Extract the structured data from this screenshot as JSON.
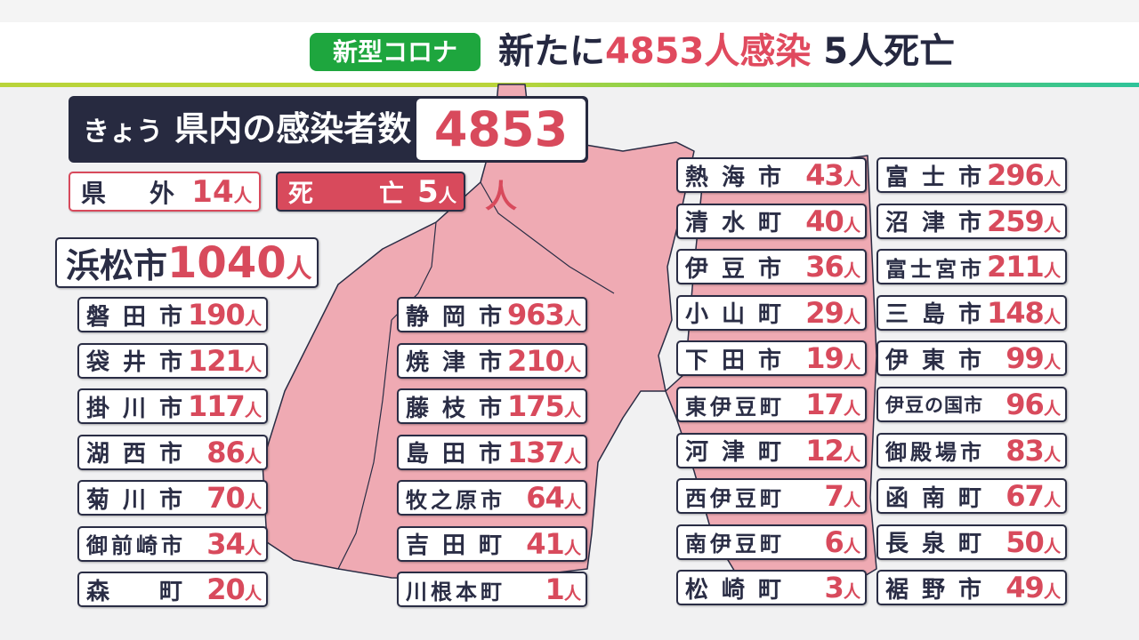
{
  "header": {
    "badge": "新型コロナ",
    "headline_prefix": "新たに",
    "headline_cases": "4853人感染",
    "headline_deaths": "5人死亡"
  },
  "colors": {
    "badge": "#1ea63e",
    "accent_red": "#d84a5c",
    "navy": "#272a40",
    "map_fill": "#efaab3"
  },
  "summary": {
    "label_prefix": "きょう",
    "label": "県内の感染者数",
    "total": "4853",
    "unit": "人",
    "outside": {
      "label": "県外",
      "value": "14",
      "unit": "人"
    },
    "deaths": {
      "label": "死亡",
      "value": "5",
      "unit": "人"
    }
  },
  "hamamatsu": {
    "name": "浜松市",
    "value": "1040",
    "unit": "人"
  },
  "west": [
    {
      "name": "磐田市",
      "value": "190"
    },
    {
      "name": "袋井市",
      "value": "121"
    },
    {
      "name": "掛川市",
      "value": "117"
    },
    {
      "name": "湖西市",
      "value": "86"
    },
    {
      "name": "菊川市",
      "value": "70"
    },
    {
      "name": "御前崎市",
      "value": "34"
    },
    {
      "name": "森町",
      "value": "20"
    }
  ],
  "central": [
    {
      "name": "静岡市",
      "value": "963"
    },
    {
      "name": "焼津市",
      "value": "210"
    },
    {
      "name": "藤枝市",
      "value": "175"
    },
    {
      "name": "島田市",
      "value": "137"
    },
    {
      "name": "牧之原市",
      "value": "64"
    },
    {
      "name": "吉田町",
      "value": "41"
    },
    {
      "name": "川根本町",
      "value": "1"
    }
  ],
  "east1": [
    {
      "name": "熱海市",
      "value": "43"
    },
    {
      "name": "清水町",
      "value": "40"
    },
    {
      "name": "伊豆市",
      "value": "36"
    },
    {
      "name": "小山町",
      "value": "29"
    },
    {
      "name": "下田市",
      "value": "19"
    },
    {
      "name": "東伊豆町",
      "value": "17"
    },
    {
      "name": "河津町",
      "value": "12"
    },
    {
      "name": "西伊豆町",
      "value": "7"
    },
    {
      "name": "南伊豆町",
      "value": "6"
    },
    {
      "name": "松崎町",
      "value": "3"
    }
  ],
  "east2": [
    {
      "name": "富士市",
      "value": "296"
    },
    {
      "name": "沼津市",
      "value": "259"
    },
    {
      "name": "富士宮市",
      "value": "211"
    },
    {
      "name": "三島市",
      "value": "148"
    },
    {
      "name": "伊東市",
      "value": "99"
    },
    {
      "name": "伊豆の国市",
      "value": "96"
    },
    {
      "name": "御殿場市",
      "value": "83"
    },
    {
      "name": "函南町",
      "value": "67"
    },
    {
      "name": "長泉町",
      "value": "50"
    },
    {
      "name": "裾野市",
      "value": "49"
    }
  ],
  "unit": "人"
}
